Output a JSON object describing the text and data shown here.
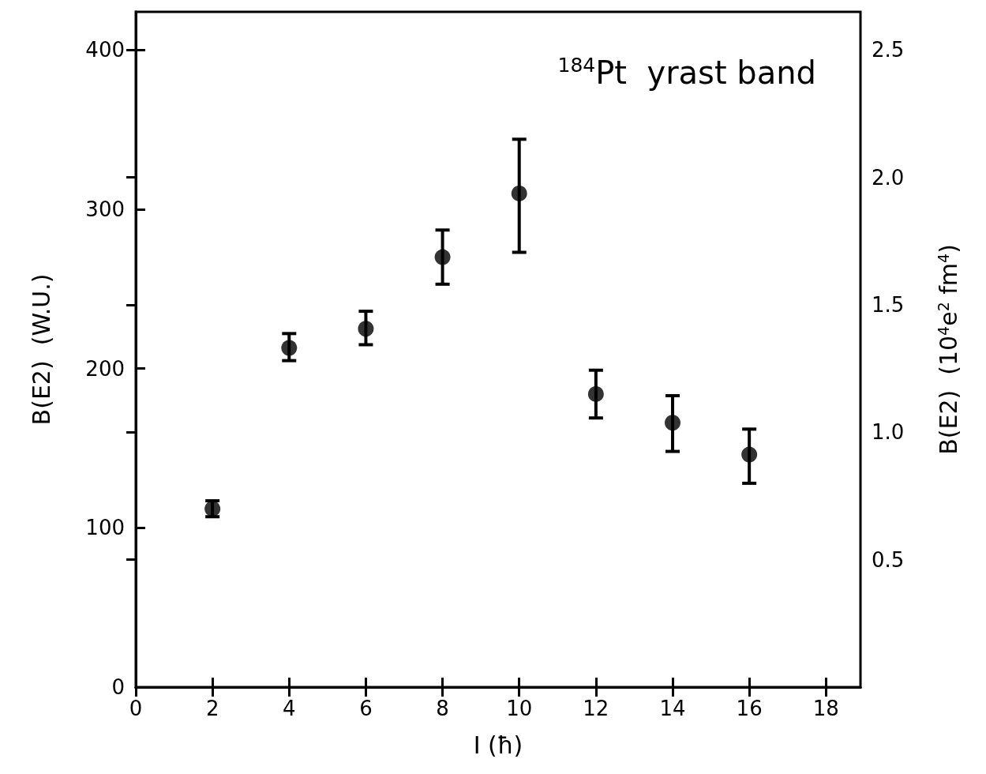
{
  "chart_data": {
    "type": "scatter",
    "xlabel": "I (ħ)",
    "ylabel": "B(E2)  (W.U.)",
    "y2label": "B(E2)  (10$^{4}$e$^{2}$ fm$^{4}$)",
    "annotations": [
      "$^{184}$Pt  yrast band"
    ],
    "x": [
      2,
      4,
      6,
      8,
      10,
      12,
      14,
      16
    ],
    "series": [
      {
        "color": "#000000",
        "values": [
          112,
          213,
          225,
          270,
          310,
          184,
          166,
          146
        ],
        "errors": [
          [
            107,
            117
          ],
          [
            205,
            222
          ],
          [
            215,
            236
          ],
          [
            253,
            287
          ],
          [
            273,
            344
          ],
          [
            169,
            199
          ],
          [
            148,
            183
          ],
          [
            128,
            162
          ]
        ]
      }
    ],
    "xlim": [
      0,
      18.9
    ],
    "xticks": [
      0,
      2,
      4,
      6,
      8,
      10,
      12,
      14,
      16,
      18
    ],
    "ylim": [
      0,
      424
    ],
    "yticks": [
      0,
      100,
      200,
      300,
      400
    ],
    "y2lim": [
      0,
      2.65
    ],
    "y2ticks": [
      {
        "value": 0.5,
        "label": "0.5"
      },
      {
        "value": 1,
        "label": "1.0"
      },
      {
        "value": 1.5,
        "label": "1.5"
      },
      {
        "value": 2,
        "label": "2.0"
      },
      {
        "value": 2.5,
        "label": "2.5"
      }
    ],
    "marker": "circle",
    "grid": false
  }
}
